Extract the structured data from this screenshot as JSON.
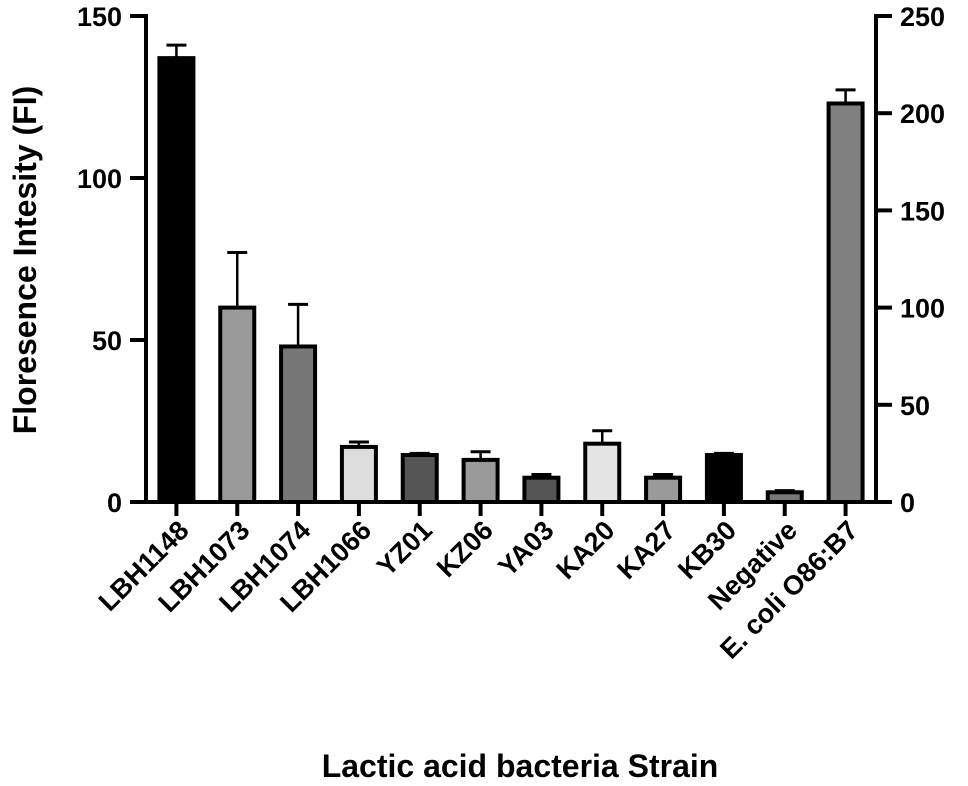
{
  "chart_data": {
    "type": "bar",
    "title": "",
    "xlabel": "Lactic acid bacteria Strain",
    "ylabel": "Floresence Intesity (FI)",
    "ylim": [
      0,
      150
    ],
    "y2lim": [
      0,
      250
    ],
    "yticks": [
      "0",
      "50",
      "100",
      "150"
    ],
    "y2ticks": [
      "0",
      "50",
      "100",
      "150",
      "200",
      "250"
    ],
    "grid": false,
    "legend": "none",
    "categories": [
      "LBH1148",
      "LBH1073",
      "LBH1074",
      "LBH1066",
      "YZ01",
      "KZ06",
      "YA03",
      "KA20",
      "KA27",
      "KB30",
      "Negative",
      "E. coli O86:B7"
    ],
    "values": [
      137,
      60,
      48,
      17,
      14.5,
      13,
      7.5,
      18,
      7.5,
      14.5,
      3,
      205
    ],
    "errors": [
      4,
      17,
      13,
      1.5,
      0.5,
      2.5,
      1,
      4,
      1,
      0.5,
      0.5,
      7
    ],
    "axis": [
      "left",
      "left",
      "left",
      "left",
      "left",
      "left",
      "left",
      "left",
      "left",
      "left",
      "left",
      "right"
    ],
    "colors": [
      "#000000",
      "#9a9a9a",
      "#777777",
      "#dcdcdc",
      "#555555",
      "#9a9a9a",
      "#555555",
      "#e4e4e4",
      "#9a9a9a",
      "#000000",
      "#777777",
      "#808080"
    ]
  }
}
